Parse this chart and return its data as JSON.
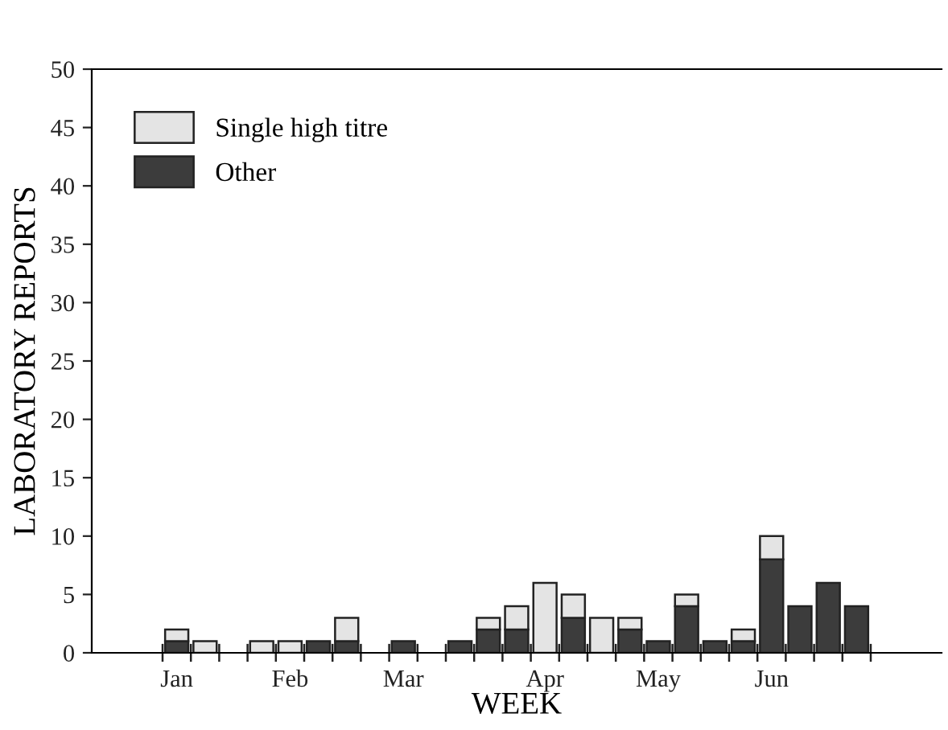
{
  "chart_data": {
    "type": "bar",
    "stacked": true,
    "xlabel": "WEEK",
    "ylabel": "LABORATORY REPORTS",
    "categories": [
      "Jan",
      null,
      null,
      null,
      "Feb",
      null,
      null,
      null,
      "Mar",
      null,
      null,
      null,
      null,
      "Apr",
      null,
      null,
      null,
      "May",
      null,
      null,
      null,
      "Jun",
      null,
      null,
      null
    ],
    "series": [
      {
        "name": "Other",
        "color": "#3c3c3c",
        "values": [
          1,
          0,
          0,
          0,
          0,
          1,
          1,
          0,
          1,
          0,
          1,
          2,
          2,
          0,
          3,
          0,
          2,
          1,
          4,
          1,
          1,
          8,
          4,
          6,
          4
        ]
      },
      {
        "name": "Single high titre",
        "color": "#e4e4e4",
        "values": [
          1,
          1,
          0,
          1,
          1,
          0,
          2,
          0,
          0,
          0,
          0,
          1,
          2,
          6,
          2,
          3,
          1,
          0,
          1,
          0,
          1,
          2,
          0,
          0,
          0
        ]
      }
    ],
    "ylim": [
      0,
      50
    ],
    "yticks": [
      0,
      5,
      10,
      15,
      20,
      25,
      30,
      35,
      40,
      45,
      50
    ],
    "grid": false,
    "legend": "top left"
  }
}
